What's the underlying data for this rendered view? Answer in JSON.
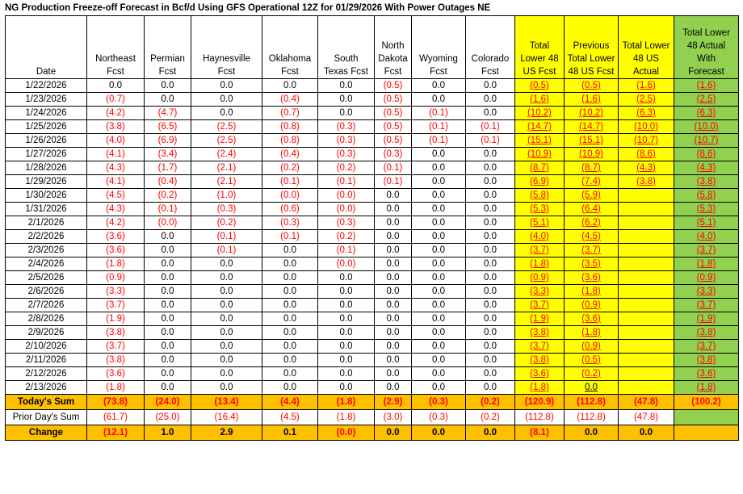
{
  "title": "NG Production Freeze-off Forecast in Bcf/d Using GFS Operational 12Z for 01/29/2026 With Power Outages NE",
  "headers": [
    [
      "Date"
    ],
    [
      "Northeast",
      "Fcst"
    ],
    [
      "Permian",
      "Fcst"
    ],
    [
      "Haynesville",
      "Fcst"
    ],
    [
      "Oklahoma",
      "Fcst"
    ],
    [
      "South",
      "Texas Fcst"
    ],
    [
      "North",
      "Dakota",
      "Fcst"
    ],
    [
      "Wyoming",
      "Fcst"
    ],
    [
      "Colorado",
      "Fcst"
    ],
    [
      "Total",
      "Lower 48",
      "US Fcst"
    ],
    [
      "Previous",
      "Total Lower",
      "48 US Fcst"
    ],
    [
      "Total Lower",
      "48 US",
      "Actual"
    ],
    [
      "Total Lower",
      "48 Actual",
      "With",
      "Forecast"
    ]
  ],
  "rows": [
    [
      "1/22/2026",
      "0.0",
      "0.0",
      "0.0",
      "0.0",
      "0.0",
      "(0.5)",
      "0.0",
      "0.0",
      "(0.5)",
      "(0.5)",
      "(1.6)",
      "(1.6)"
    ],
    [
      "1/23/2026",
      "(0.7)",
      "0.0",
      "0.0",
      "(0.4)",
      "0.0",
      "(0.5)",
      "0.0",
      "0.0",
      "(1.6)",
      "(1.6)",
      "(2.5)",
      "(2.5)"
    ],
    [
      "1/24/2026",
      "(4.2)",
      "(4.7)",
      "0.0",
      "(0.7)",
      "0.0",
      "(0.5)",
      "(0.1)",
      "0.0",
      "(10.2)",
      "(10.2)",
      "(6.3)",
      "(6.3)"
    ],
    [
      "1/25/2026",
      "(3.8)",
      "(6.5)",
      "(2.5)",
      "(0.8)",
      "(0.3)",
      "(0.5)",
      "(0.1)",
      "(0.1)",
      "(14.7)",
      "(14.7)",
      "(10.0)",
      "(10.0)"
    ],
    [
      "1/26/2026",
      "(4.0)",
      "(6.9)",
      "(2.5)",
      "(0.8)",
      "(0.3)",
      "(0.5)",
      "(0.1)",
      "(0.1)",
      "(15.1)",
      "(15.1)",
      "(10.7)",
      "(10.7)"
    ],
    [
      "1/27/2026",
      "(4.1)",
      "(3.4)",
      "(2.4)",
      "(0.4)",
      "(0.3)",
      "(0.3)",
      "0.0",
      "0.0",
      "(10.9)",
      "(10.9)",
      "(8.6)",
      "(8.6)"
    ],
    [
      "1/28/2026",
      "(4.3)",
      "(1.7)",
      "(2.1)",
      "(0.2)",
      "(0.2)",
      "(0.1)",
      "0.0",
      "0.0",
      "(8.7)",
      "(8.7)",
      "(4.3)",
      "(4.3)"
    ],
    [
      "1/29/2026",
      "(4.1)",
      "(0.4)",
      "(2.1)",
      "(0.1)",
      "(0.1)",
      "(0.1)",
      "0.0",
      "0.0",
      "(6.9)",
      "(7.4)",
      "(3.8)",
      "(3.8)"
    ],
    [
      "1/30/2026",
      "(4.5)",
      "(0.2)",
      "(1.0)",
      "(0.0)",
      "(0.0)",
      "0.0",
      "0.0",
      "0.0",
      "(5.8)",
      "(5.9)",
      "",
      "(5.8)"
    ],
    [
      "1/31/2026",
      "(4.3)",
      "(0.1)",
      "(0.3)",
      "(0.6)",
      "(0.0)",
      "0.0",
      "0.0",
      "0.0",
      "(5.3)",
      "(6.4)",
      "",
      "(5.3)"
    ],
    [
      "2/1/2026",
      "(4.2)",
      "(0.0)",
      "(0.2)",
      "(0.3)",
      "(0.3)",
      "0.0",
      "0.0",
      "0.0",
      "(5.1)",
      "(6.2)",
      "",
      "(5.1)"
    ],
    [
      "2/2/2026",
      "(3.6)",
      "0.0",
      "(0.1)",
      "(0.1)",
      "(0.2)",
      "0.0",
      "0.0",
      "0.0",
      "(4.0)",
      "(4.5)",
      "",
      "(4.0)"
    ],
    [
      "2/3/2026",
      "(3.6)",
      "0.0",
      "(0.1)",
      "0.0",
      "(0.1)",
      "0.0",
      "0.0",
      "0.0",
      "(3.7)",
      "(3.7)",
      "",
      "(3.7)"
    ],
    [
      "2/4/2026",
      "(1.8)",
      "0.0",
      "0.0",
      "0.0",
      "(0.0)",
      "0.0",
      "0.0",
      "0.0",
      "(1.8)",
      "(3.5)",
      "",
      "(1.8)"
    ],
    [
      "2/5/2026",
      "(0.9)",
      "0.0",
      "0.0",
      "0.0",
      "0.0",
      "0.0",
      "0.0",
      "0.0",
      "(0.9)",
      "(3.6)",
      "",
      "(0.9)"
    ],
    [
      "2/6/2026",
      "(3.3)",
      "0.0",
      "0.0",
      "0.0",
      "0.0",
      "0.0",
      "0.0",
      "0.0",
      "(3.3)",
      "(1.8)",
      "",
      "(3.3)"
    ],
    [
      "2/7/2026",
      "(3.7)",
      "0.0",
      "0.0",
      "0.0",
      "0.0",
      "0.0",
      "0.0",
      "0.0",
      "(3.7)",
      "(0.9)",
      "",
      "(3.7)"
    ],
    [
      "2/8/2026",
      "(1.9)",
      "0.0",
      "0.0",
      "0.0",
      "0.0",
      "0.0",
      "0.0",
      "0.0",
      "(1.9)",
      "(3.6)",
      "",
      "(1.9)"
    ],
    [
      "2/9/2026",
      "(3.8)",
      "0.0",
      "0.0",
      "0.0",
      "0.0",
      "0.0",
      "0.0",
      "0.0",
      "(3.8)",
      "(1.8)",
      "",
      "(3.8)"
    ],
    [
      "2/10/2026",
      "(3.7)",
      "0.0",
      "0.0",
      "0.0",
      "0.0",
      "0.0",
      "0.0",
      "0.0",
      "(3.7)",
      "(0.9)",
      "",
      "(3.7)"
    ],
    [
      "2/11/2026",
      "(3.8)",
      "0.0",
      "0.0",
      "0.0",
      "0.0",
      "0.0",
      "0.0",
      "0.0",
      "(3.8)",
      "(0.5)",
      "",
      "(3.8)"
    ],
    [
      "2/12/2026",
      "(3.6)",
      "0.0",
      "0.0",
      "0.0",
      "0.0",
      "0.0",
      "0.0",
      "0.0",
      "(3.6)",
      "(0.2)",
      "",
      "(3.6)"
    ],
    [
      "2/13/2026",
      "(1.8)",
      "0.0",
      "0.0",
      "0.0",
      "0.0",
      "0.0",
      "0.0",
      "0.0",
      "(1.8)",
      "0.0",
      "",
      "(1.8)"
    ]
  ],
  "summary": [
    {
      "label": "Today's Sum",
      "style": "o",
      "values": [
        "(73.8)",
        "(24.0)",
        "(13.4)",
        "(4.4)",
        "(1.8)",
        "(2.9)",
        "(0.3)",
        "(0.2)",
        "(120.9)",
        "(112.8)",
        "(47.8)",
        "(100.2)"
      ]
    },
    {
      "label": "Prior Day's Sum",
      "style": "plain",
      "values": [
        "(61.7)",
        "(25.0)",
        "(16.4)",
        "(4.5)",
        "(1.8)",
        "(3.0)",
        "(0.3)",
        "(0.2)",
        "(112.8)",
        "(112.8)",
        "(47.8)",
        ""
      ]
    },
    {
      "label": "Change",
      "style": "o",
      "values": [
        "(12.1)",
        "1.0",
        "2.9",
        "0.1",
        "(0.0)",
        "0.0",
        "0.0",
        "0.0",
        "(8.1)",
        "0.0",
        "0.0",
        ""
      ]
    }
  ],
  "colors": {
    "negative": "#ff0000",
    "highlight_yellow": "#ffff00",
    "highlight_green": "#92d050",
    "highlight_orange": "#ffc000"
  }
}
